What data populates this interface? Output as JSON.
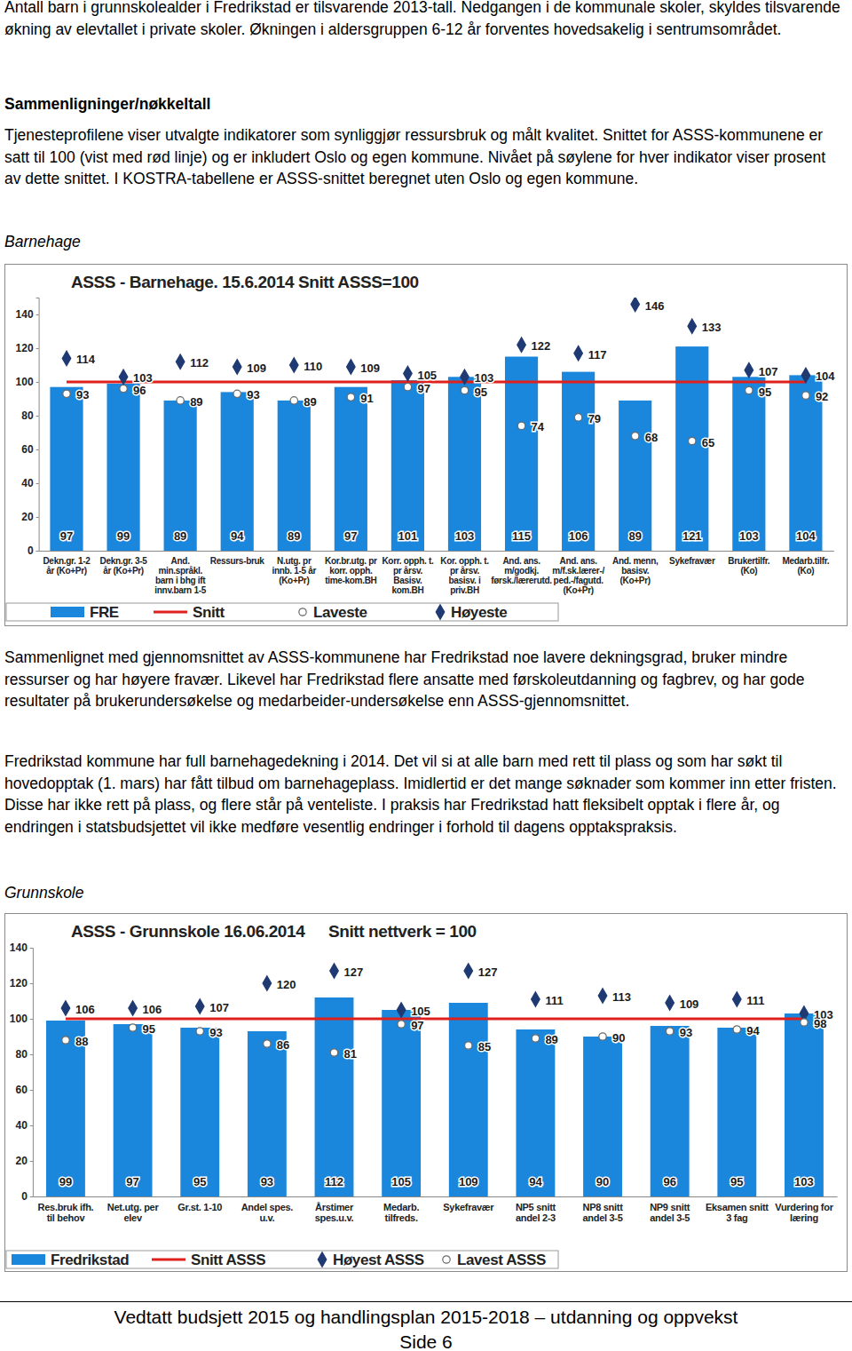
{
  "text": {
    "intro": "Antall barn i grunnskolealder i Fredrikstad er tilsvarende 2013-tall. Nedgangen i de kommunale skoler, skyldes tilsvarende økning av elevtallet i private skoler. Økningen i aldersgruppen 6-12 år forventes hovedsakelig i sentrumsområdet.",
    "heading": "Sammenligninger/nøkkeltall",
    "method": "Tjenesteprofilene viser utvalgte indikatorer som synliggjør ressursbruk og målt kvalitet. Snittet for ASSS-kommunene er satt til 100 (vist med rød linje) og er inkludert Oslo og egen kommune. Nivået på søylene for hver indikator viser prosent av dette snittet. I KOSTRA-tabellene er ASSS-snittet beregnet uten Oslo og egen kommune.",
    "sections": [
      {
        "title": "Barnehage",
        "paragraphs": [
          "Sammenlignet med gjennomsnittet av ASSS-kommunene har Fredrikstad noe lavere dekningsgrad, bruker mindre ressurser og har høyere fravær. Likevel har Fredrikstad flere ansatte med førskoleutdanning og fagbrev, og har gode resultater på brukerundersøkelse og medarbeider-undersøkelse enn ASSS-gjennomsnittet.",
          "Fredrikstad kommune har full barnehagedekning i 2014. Det vil si at alle barn med rett til plass og som har søkt til hovedopptak (1. mars) har fått tilbud om barnehageplass. Imidlertid er det mange søknader som kommer inn etter fristen. Disse har ikke rett på plass, og flere står på venteliste. I praksis har Fredrikstad hatt fleksibelt opptak i flere år, og endringen i statsbudsjettet vil ikke medføre vesentlig endringer i forhold til dagens opptakspraksis."
        ]
      },
      {
        "title": "Grunnskole",
        "paragraphs": []
      }
    ],
    "footer": {
      "title": "Vedtatt budsjett 2015 og handlingsplan 2015-2018 – utdanning og oppvekst",
      "page": "Side 6"
    }
  },
  "chart_data": [
    {
      "type": "bar",
      "title": "ASSS - Barnehage. 15.6.2014 Snitt ASSS=100",
      "categories": [
        "Dekn.gr. 1-2 år (Ko+Pr)",
        "Dekn.gr. 3-5 år (Ko+Pr)",
        "And. min.språkl. barn i bhg ift innv.barn 1-5",
        "Ressurs-bruk",
        "N.utg. pr innb. 1-5 år (Ko+Pr)",
        "Kor.br.utg. pr korr. opph. time-kom.BH",
        "Korr. opph. t. pr årsv. Basisv. kom.BH",
        "Kor. opph. t. pr årsv. basisv. i priv.BH",
        "And. ans. m/godkj. førsk./lærerutd.",
        "And. ans. m/f.sk.lærer-/ ped.-/fagutd. (Ko+Pr)",
        "And. menn, basisv. (Ko+Pr)",
        "Sykefravær",
        "Brukertilfr. (Ko)",
        "Medarb.tilfr. (Ko)"
      ],
      "series": [
        {
          "name": "FRE",
          "type": "bar",
          "color": "#1a86dc",
          "data_labels": true,
          "values": [
            97,
            99,
            89,
            94,
            89,
            97,
            101,
            103,
            115,
            106,
            89,
            121,
            103,
            104
          ]
        },
        {
          "name": "Snitt",
          "type": "line",
          "color": "#e0201c",
          "values": [
            100,
            100,
            100,
            100,
            100,
            100,
            100,
            100,
            100,
            100,
            100,
            100,
            100,
            100
          ]
        },
        {
          "name": "Laveste",
          "type": "scatter",
          "marker": "circle",
          "color": "#ffffff",
          "data_labels": true,
          "values": [
            93,
            96,
            89,
            93,
            89,
            91,
            97,
            95,
            74,
            79,
            68,
            65,
            95,
            92
          ]
        },
        {
          "name": "Høyeste",
          "type": "scatter",
          "marker": "diamond",
          "color": "#1f3a73",
          "data_labels": true,
          "values": [
            114,
            103,
            112,
            109,
            110,
            109,
            105,
            103,
            122,
            117,
            146,
            133,
            107,
            104
          ]
        }
      ],
      "ylim": [
        0,
        150
      ],
      "yticks": [
        0,
        20,
        40,
        60,
        80,
        100,
        120,
        140
      ],
      "legend": "bottom"
    },
    {
      "type": "bar",
      "title": "ASSS - Grunnskole 16.06.2014",
      "subtitle": "Snitt nettverk = 100",
      "categories": [
        "Res.bruk ifh. til behov",
        "Net.utg. per elev",
        "Gr.st. 1-10",
        "Andel spes. u.v.",
        "Årstimer spes.u.v.",
        "Medarb. tilfreds.",
        "Sykefravær",
        "NP5 snitt andel 2-3",
        "NP8 snitt andel 3-5",
        "NP9 snitt andel 3-5",
        "Eksamen snitt 3 fag",
        "Vurdering for læring"
      ],
      "series": [
        {
          "name": "Fredrikstad",
          "type": "bar",
          "color": "#1a86dc",
          "data_labels": true,
          "values": [
            99,
            97,
            95,
            93,
            112,
            105,
            109,
            94,
            90,
            96,
            95,
            103
          ]
        },
        {
          "name": "Snitt ASSS",
          "type": "line",
          "color": "#e0201c",
          "values": [
            100,
            100,
            100,
            100,
            100,
            100,
            100,
            100,
            100,
            100,
            100,
            100
          ]
        },
        {
          "name": "Høyest ASSS",
          "type": "scatter",
          "marker": "diamond",
          "color": "#1f3a73",
          "data_labels": true,
          "values": [
            106,
            106,
            107,
            120,
            127,
            105,
            127,
            111,
            113,
            109,
            111,
            103
          ]
        },
        {
          "name": "Lavest ASSS",
          "type": "scatter",
          "marker": "circle",
          "color": "#ffffff",
          "data_labels": true,
          "values": [
            88,
            95,
            93,
            86,
            81,
            97,
            85,
            89,
            90,
            93,
            94,
            98
          ]
        }
      ],
      "ylim": [
        0,
        140
      ],
      "yticks": [
        0,
        20,
        40,
        60,
        80,
        100,
        120,
        140
      ],
      "legend": "bottom"
    }
  ]
}
